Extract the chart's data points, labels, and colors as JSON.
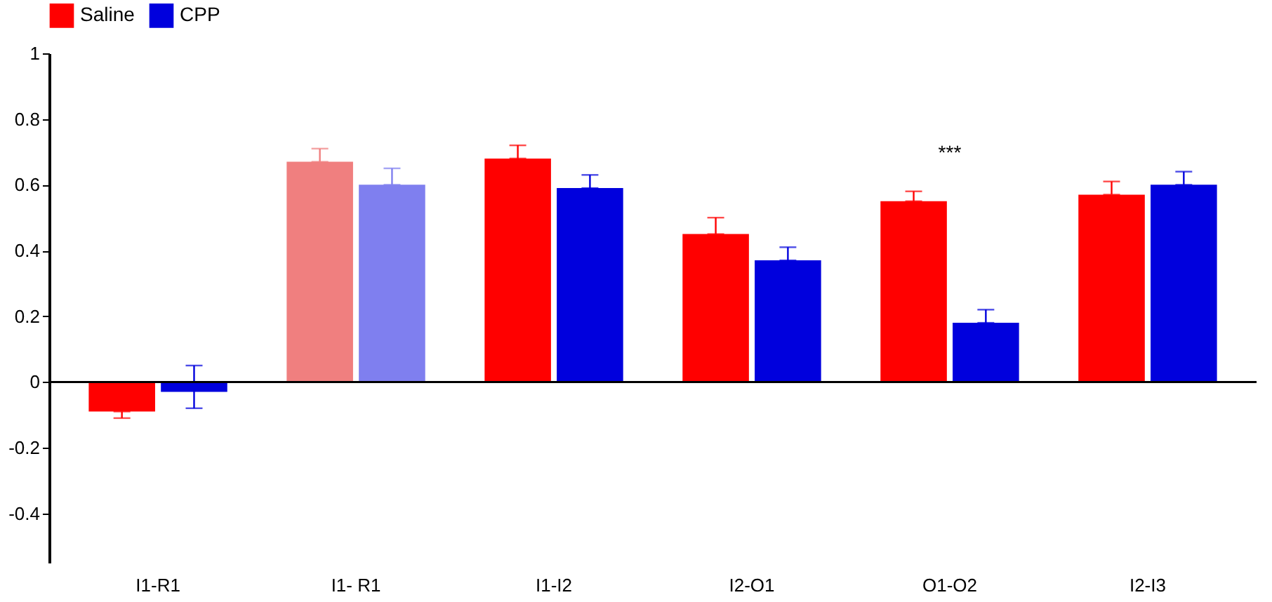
{
  "chart_data": {
    "type": "bar",
    "categories": [
      "I1-R1",
      "I1- R1",
      "I1-I2",
      "I2-O1",
      "O1-O2",
      "I2-I3"
    ],
    "series": [
      {
        "name": "Saline",
        "color": "#ff0000",
        "colors": [
          "#ff0000",
          "#f07f7f",
          "#ff0000",
          "#ff0000",
          "#ff0000",
          "#ff0000"
        ],
        "values": [
          -0.09,
          0.67,
          0.68,
          0.45,
          0.55,
          0.57
        ],
        "errors": [
          [
            -0.11,
            -0.09
          ],
          [
            0.67,
            0.71
          ],
          [
            0.68,
            0.72
          ],
          [
            0.45,
            0.5
          ],
          [
            0.55,
            0.58
          ],
          [
            0.57,
            0.61
          ]
        ]
      },
      {
        "name": "CPP",
        "color": "#0000dd",
        "colors": [
          "#0000dd",
          "#7f7fef",
          "#0000dd",
          "#0000dd",
          "#0000dd",
          "#0000dd"
        ],
        "values": [
          -0.03,
          0.6,
          0.59,
          0.37,
          0.18,
          0.6
        ],
        "errors": [
          [
            -0.08,
            0.05
          ],
          [
            0.6,
            0.65
          ],
          [
            0.59,
            0.63
          ],
          [
            0.37,
            0.41
          ],
          [
            0.18,
            0.22
          ],
          [
            0.6,
            0.64
          ]
        ]
      }
    ],
    "ylim": [
      -0.55,
      1
    ],
    "yticks": [
      -0.4,
      -0.2,
      0,
      0.2,
      0.4,
      0.6,
      0.8,
      1
    ],
    "grid": false,
    "legend": "top",
    "ref_lines": [
      {
        "axis": "y",
        "value": 0,
        "color": "#000000",
        "line_style": "solid"
      }
    ],
    "annotations": [
      "***"
    ]
  }
}
